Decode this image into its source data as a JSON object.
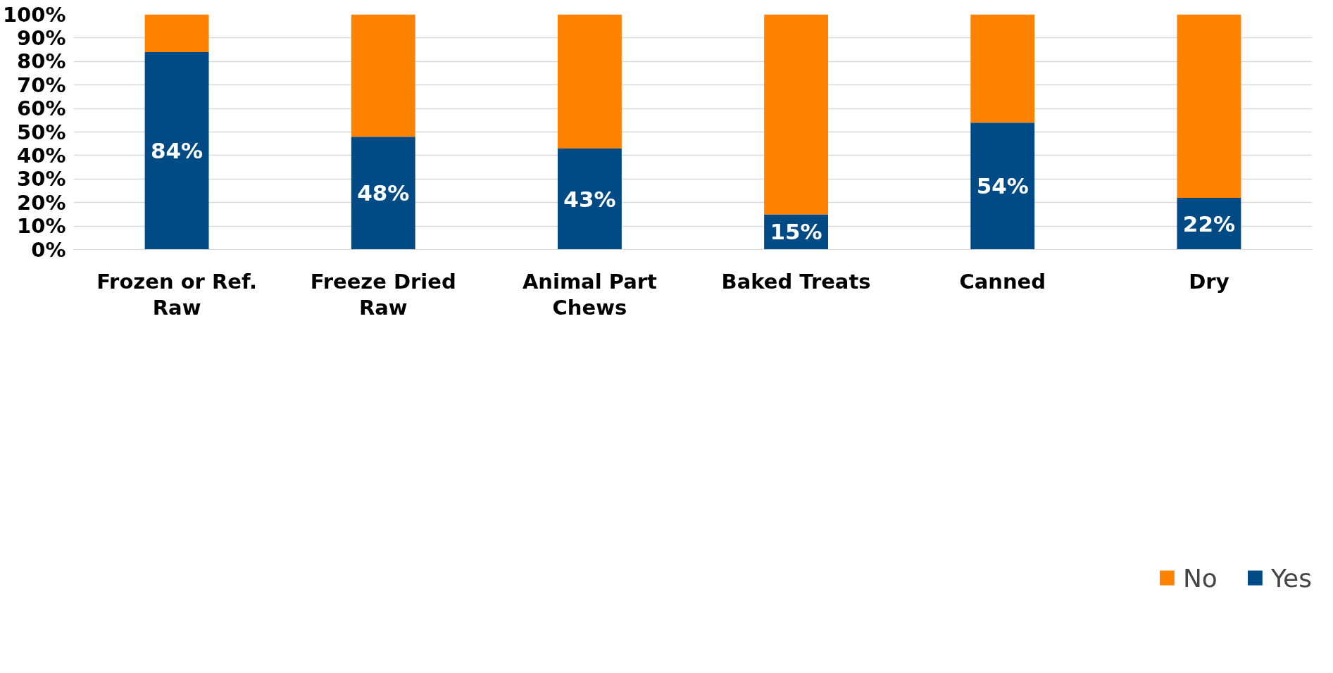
{
  "chart_data": {
    "type": "bar",
    "stacked": true,
    "categories": [
      "Frozen or Ref.\nRaw",
      "Freeze Dried\nRaw",
      "Animal Part\nChews",
      "Baked Treats",
      "Canned",
      "Dry"
    ],
    "series": [
      {
        "name": "Yes",
        "color": "#004a86",
        "values": [
          84,
          48,
          43,
          15,
          54,
          22
        ],
        "value_labels": [
          "84%",
          "48%",
          "43%",
          "15%",
          "54%",
          "22%"
        ]
      },
      {
        "name": "No",
        "color": "#ff8300",
        "values": [
          16,
          52,
          57,
          85,
          46,
          78
        ]
      }
    ],
    "ylim": [
      0,
      100
    ],
    "yticks": [
      {
        "value": 0,
        "label": "0%"
      },
      {
        "value": 10,
        "label": "10%"
      },
      {
        "value": 20,
        "label": "20%"
      },
      {
        "value": 30,
        "label": "30%"
      },
      {
        "value": 40,
        "label": "40%"
      },
      {
        "value": 50,
        "label": "50%"
      },
      {
        "value": 60,
        "label": "60%"
      },
      {
        "value": 70,
        "label": "70%"
      },
      {
        "value": 80,
        "label": "80%"
      },
      {
        "value": 90,
        "label": "90%"
      },
      {
        "value": 100,
        "label": "100%"
      }
    ],
    "grid": "y",
    "legend": "bottom right"
  }
}
